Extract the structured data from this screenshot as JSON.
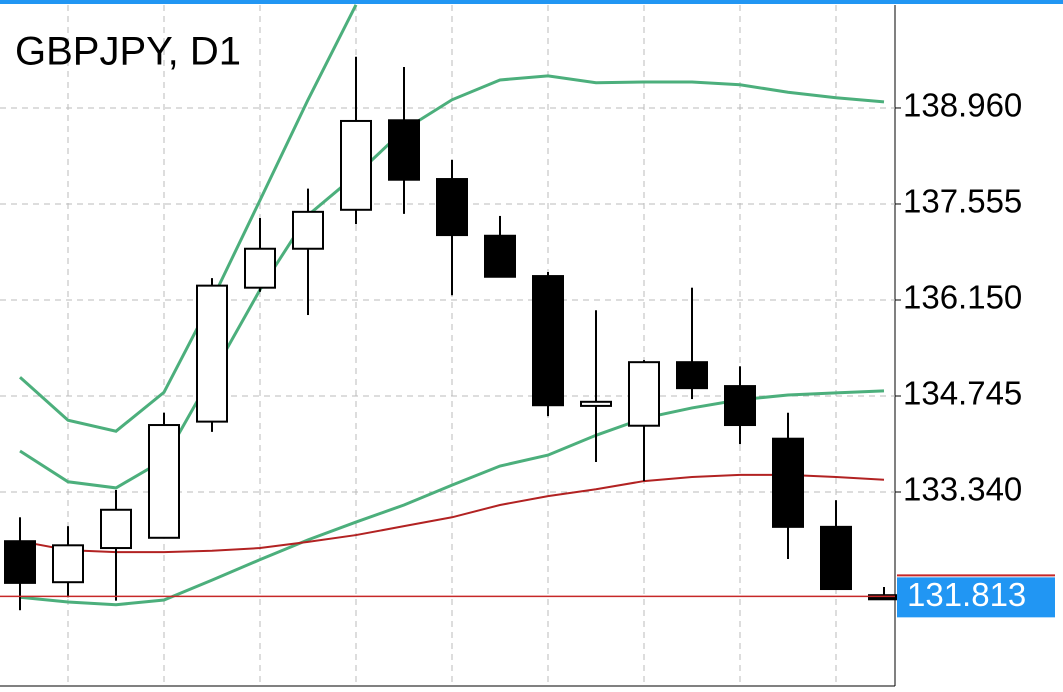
{
  "chart_data": {
    "type": "candlestick",
    "title": "GBPJPY, D1",
    "categories": [
      null,
      null,
      null,
      null,
      null,
      null,
      null,
      null,
      null,
      null,
      null,
      null,
      null,
      null,
      null,
      null,
      null,
      null,
      null
    ],
    "open": [
      132.62,
      132.02,
      132.52,
      132.67,
      134.37,
      136.33,
      136.9,
      137.47,
      138.78,
      137.92,
      137.09,
      136.5,
      134.6,
      134.31,
      135.24,
      134.89,
      134.12,
      132.83,
      131.83
    ],
    "high": [
      132.97,
      132.84,
      133.37,
      134.5,
      136.47,
      137.35,
      137.78,
      139.71,
      139.56,
      138.2,
      137.38,
      136.56,
      136.0,
      135.27,
      136.33,
      135.18,
      134.5,
      133.22,
      131.95
    ],
    "low": [
      131.61,
      131.8,
      131.75,
      132.67,
      134.22,
      136.27,
      135.93,
      137.26,
      137.41,
      136.22,
      136.49,
      134.45,
      133.78,
      133.5,
      134.7,
      134.04,
      132.36,
      131.92,
      131.77
    ],
    "close": [
      132.01,
      132.56,
      133.08,
      134.32,
      136.36,
      136.9,
      137.44,
      138.77,
      137.91,
      137.1,
      136.49,
      134.61,
      134.66,
      135.24,
      134.86,
      134.32,
      132.83,
      131.92,
      131.77
    ],
    "bull_color": "#ffffff",
    "bear_color": "#000000",
    "lines": [
      {
        "color": "#4caf7c",
        "values": [
          135.02,
          134.39,
          134.23,
          134.8,
          136.15,
          137.61,
          139.08,
          140.47,
          null,
          null,
          null,
          null,
          null,
          null,
          null,
          null,
          null,
          null,
          null
        ]
      },
      {
        "color": "#4caf7c",
        "values": [
          133.94,
          133.49,
          133.4,
          133.81,
          135.05,
          136.3,
          137.39,
          137.98,
          138.64,
          139.08,
          139.37,
          139.43,
          139.33,
          139.34,
          139.34,
          139.3,
          139.19,
          139.11,
          139.05
        ]
      },
      {
        "color": "#4caf7c",
        "values": [
          131.8,
          131.73,
          131.69,
          131.76,
          132.05,
          132.35,
          132.64,
          132.9,
          133.15,
          133.44,
          133.72,
          133.88,
          134.17,
          134.42,
          134.57,
          134.69,
          134.76,
          134.79,
          134.82
        ]
      },
      {
        "color": "#b22222",
        "values": [
          132.62,
          132.49,
          132.46,
          132.46,
          132.48,
          132.52,
          132.61,
          132.71,
          132.84,
          132.97,
          133.15,
          133.28,
          133.38,
          133.5,
          133.56,
          133.59,
          133.59,
          133.56,
          133.52
        ]
      }
    ],
    "last_price": 131.813,
    "last_price_color": "#2196f3",
    "ylim": [
      130.501,
      140.467
    ],
    "yticks": [
      {
        "value": 133.34,
        "label": "133.340"
      },
      134.745,
      {
        "value": 136.15,
        "label": "136.150"
      },
      137.555,
      {
        "value": 138.96,
        "label": "138.960"
      }
    ],
    "grid": true
  }
}
